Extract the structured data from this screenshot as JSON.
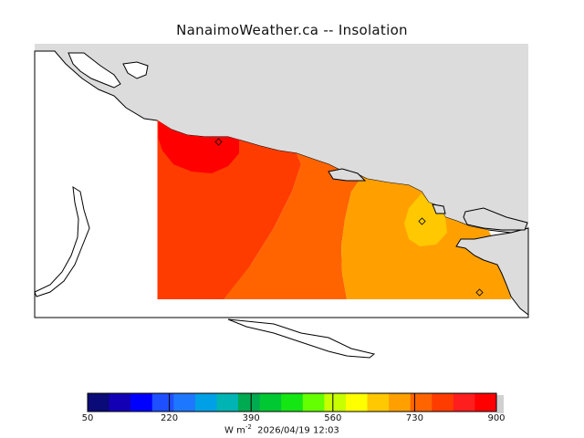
{
  "title": "NanaimoWeather.ca -- Insolation",
  "colorbar": {
    "colors": [
      "#0a0a78",
      "#1400b4",
      "#0000ff",
      "#1e50ff",
      "#1e78ff",
      "#00a0e6",
      "#00b4b4",
      "#00aa50",
      "#00c832",
      "#14e614",
      "#64ff00",
      "#c8ff00",
      "#ffff00",
      "#ffc800",
      "#ffa000",
      "#ff6400",
      "#ff3c00",
      "#ff1e1e",
      "#ff0000"
    ],
    "tick_labels": [
      "50",
      "220",
      "390",
      "560",
      "730",
      "900"
    ],
    "min": 50,
    "max": 900
  },
  "footer": {
    "units_prefix": "W m",
    "units_exponent": "-2",
    "timestamp": "2026/04/19 12:03"
  },
  "map": {
    "land_color": "#dcdcdc",
    "water_color": "#ffffff",
    "field_colors": [
      "#ff0000",
      "#ff3c00",
      "#ff6400",
      "#ffa000",
      "#ffc800"
    ],
    "stations_count": 3
  }
}
